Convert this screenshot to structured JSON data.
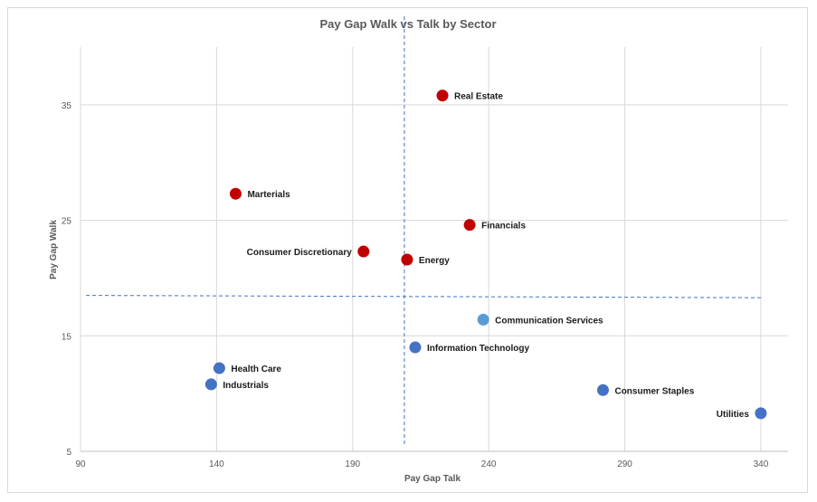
{
  "chart_data": {
    "type": "scatter",
    "title": "Pay Gap Walk vs Talk by Sector",
    "xlabel": "Pay Gap Talk",
    "ylabel": "Pay Gap Walk",
    "xlim": [
      90,
      350
    ],
    "ylim": [
      5,
      40
    ],
    "xticks": [
      90,
      140,
      190,
      240,
      290,
      340
    ],
    "yticks": [
      5,
      15,
      25,
      35
    ],
    "grid": true,
    "colors": {
      "red": "#c00000",
      "blue": "#4472c4",
      "lightblue": "#5b9bd5"
    },
    "reference_lines": {
      "vertical_x": 209,
      "horizontal": {
        "x_start": 92,
        "y_start": 18.5,
        "x_end": 341,
        "y_end": 18.3
      },
      "color": "#4472c4"
    },
    "points": [
      {
        "label": "Real Estate",
        "x": 223,
        "y": 35.8,
        "color": "red",
        "label_pos": "right"
      },
      {
        "label": "Marterials",
        "x": 147,
        "y": 27.3,
        "color": "red",
        "label_pos": "right"
      },
      {
        "label": "Financials",
        "x": 233,
        "y": 24.6,
        "color": "red",
        "label_pos": "right"
      },
      {
        "label": "Consumer Discretionary",
        "x": 194,
        "y": 22.3,
        "color": "red",
        "label_pos": "left"
      },
      {
        "label": "Energy",
        "x": 210,
        "y": 21.6,
        "color": "red",
        "label_pos": "right"
      },
      {
        "label": "Communication Services",
        "x": 238,
        "y": 16.4,
        "color": "lightblue",
        "label_pos": "right"
      },
      {
        "label": "Information Technology",
        "x": 213,
        "y": 14.0,
        "color": "blue",
        "label_pos": "right"
      },
      {
        "label": "Health Care",
        "x": 141,
        "y": 12.2,
        "color": "blue",
        "label_pos": "right"
      },
      {
        "label": "Industrials",
        "x": 138,
        "y": 10.8,
        "color": "blue",
        "label_pos": "right"
      },
      {
        "label": "Consumer Staples",
        "x": 282,
        "y": 10.3,
        "color": "blue",
        "label_pos": "right"
      },
      {
        "label": "Utilities",
        "x": 340,
        "y": 8.3,
        "color": "blue",
        "label_pos": "left"
      }
    ]
  }
}
